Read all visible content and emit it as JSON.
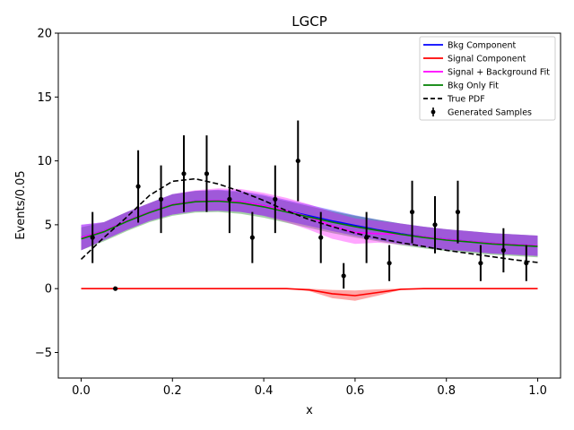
{
  "chart_data": {
    "type": "line",
    "title": "LGCP",
    "xlabel": "x",
    "ylabel": "Events/0.05",
    "xlim": [
      -0.05,
      1.05
    ],
    "ylim": [
      -7,
      20
    ],
    "xticks": [
      0.0,
      0.2,
      0.4,
      0.6,
      0.8,
      1.0
    ],
    "xtick_labels": [
      "0.0",
      "0.2",
      "0.4",
      "0.6",
      "0.8",
      "1.0"
    ],
    "yticks": [
      -5,
      0,
      5,
      10,
      15,
      20
    ],
    "ytick_labels": [
      "−5",
      "0",
      "5",
      "10",
      "15",
      "20"
    ],
    "legend_position": "top-right",
    "legend": [
      {
        "label": "Bkg Component",
        "color": "#0000ff",
        "style": "solid"
      },
      {
        "label": "Signal Component",
        "color": "#ff0000",
        "style": "solid"
      },
      {
        "label": "Signal + Background Fit",
        "color": "#ff00ff",
        "style": "solid"
      },
      {
        "label": "Bkg Only Fit",
        "color": "#008000",
        "style": "solid"
      },
      {
        "label": "True PDF",
        "color": "#000000",
        "style": "dashed"
      },
      {
        "label": "Generated Samples",
        "color": "#000000",
        "style": "errorbar"
      }
    ],
    "x": [
      0.0,
      0.05,
      0.1,
      0.15,
      0.2,
      0.25,
      0.3,
      0.35,
      0.4,
      0.45,
      0.5,
      0.55,
      0.6,
      0.65,
      0.7,
      0.75,
      0.8,
      0.85,
      0.9,
      0.95,
      1.0
    ],
    "series": [
      {
        "name": "Bkg Component",
        "color": "#0000ff",
        "values": [
          4.0,
          4.5,
          5.3,
          6.0,
          6.6,
          6.85,
          6.9,
          6.8,
          6.5,
          6.1,
          5.7,
          5.3,
          4.95,
          4.6,
          4.3,
          4.05,
          3.85,
          3.7,
          3.55,
          3.45,
          3.35
        ],
        "band_lower": [
          3.0,
          3.8,
          4.6,
          5.3,
          5.8,
          6.05,
          6.1,
          6.0,
          5.7,
          5.3,
          4.9,
          4.5,
          4.15,
          3.8,
          3.5,
          3.25,
          3.05,
          2.9,
          2.75,
          2.65,
          2.55
        ],
        "band_upper": [
          5.0,
          5.2,
          6.0,
          6.7,
          7.4,
          7.65,
          7.75,
          7.65,
          7.35,
          6.95,
          6.55,
          6.15,
          5.75,
          5.4,
          5.1,
          4.85,
          4.65,
          4.5,
          4.35,
          4.25,
          4.15
        ]
      },
      {
        "name": "Signal Component",
        "color": "#ff0000",
        "values": [
          0,
          0,
          0,
          0,
          0,
          0,
          0,
          0,
          0,
          0,
          -0.1,
          -0.4,
          -0.55,
          -0.3,
          -0.05,
          0,
          0,
          0,
          0,
          0,
          0
        ],
        "band_lower": [
          0,
          0,
          0,
          0,
          0,
          0,
          0,
          0,
          0,
          0,
          -0.2,
          -0.75,
          -0.95,
          -0.55,
          -0.1,
          0,
          0,
          0,
          0,
          0,
          0
        ],
        "band_upper": [
          0,
          0,
          0,
          0,
          0,
          0,
          0,
          0,
          0,
          0,
          0,
          -0.1,
          -0.15,
          -0.05,
          0,
          0,
          0,
          0,
          0,
          0,
          0
        ]
      },
      {
        "name": "Signal + Background Fit",
        "color": "#ff00ff",
        "values": [
          4.0,
          4.5,
          5.3,
          6.0,
          6.6,
          6.85,
          6.9,
          6.8,
          6.5,
          6.1,
          5.6,
          4.9,
          4.4,
          4.3,
          4.25,
          4.05,
          3.85,
          3.7,
          3.55,
          3.45,
          3.35
        ],
        "band_lower": [
          3.0,
          3.8,
          4.6,
          5.3,
          5.8,
          6.05,
          6.1,
          6.0,
          5.7,
          5.2,
          4.6,
          3.9,
          3.5,
          3.6,
          3.45,
          3.25,
          3.05,
          2.9,
          2.75,
          2.65,
          2.55
        ],
        "band_upper": [
          5.0,
          5.2,
          6.0,
          6.7,
          7.4,
          7.7,
          7.85,
          7.8,
          7.5,
          7.1,
          6.6,
          6.0,
          5.5,
          5.3,
          5.1,
          4.85,
          4.65,
          4.5,
          4.35,
          4.25,
          4.15
        ]
      },
      {
        "name": "Bkg Only Fit",
        "color": "#008000",
        "values": [
          3.9,
          4.45,
          5.25,
          5.95,
          6.55,
          6.8,
          6.85,
          6.7,
          6.4,
          6.0,
          5.6,
          5.2,
          4.85,
          4.55,
          4.25,
          4.0,
          3.8,
          3.65,
          3.5,
          3.4,
          3.3
        ],
        "band_lower": [
          3.0,
          3.7,
          4.5,
          5.2,
          5.7,
          5.95,
          6.0,
          5.85,
          5.55,
          5.15,
          4.75,
          4.35,
          4.0,
          3.7,
          3.4,
          3.15,
          2.95,
          2.8,
          2.65,
          2.55,
          2.45
        ],
        "band_upper": [
          4.8,
          5.2,
          6.0,
          6.7,
          7.4,
          7.65,
          7.7,
          7.55,
          7.25,
          6.85,
          6.45,
          6.05,
          5.7,
          5.4,
          5.1,
          4.85,
          4.65,
          4.5,
          4.35,
          4.25,
          4.15
        ]
      },
      {
        "name": "True PDF",
        "color": "#000000",
        "values": [
          2.3,
          4.0,
          5.6,
          7.3,
          8.4,
          8.6,
          8.2,
          7.6,
          6.9,
          6.1,
          5.4,
          4.85,
          4.35,
          3.95,
          3.6,
          3.3,
          3.0,
          2.75,
          2.5,
          2.25,
          2.05
        ]
      }
    ],
    "samples": {
      "name": "Generated Samples",
      "x": [
        0.025,
        0.075,
        0.125,
        0.175,
        0.225,
        0.275,
        0.325,
        0.375,
        0.425,
        0.475,
        0.525,
        0.575,
        0.625,
        0.675,
        0.725,
        0.775,
        0.825,
        0.875,
        0.925,
        0.975
      ],
      "y": [
        4,
        0,
        8,
        7,
        9,
        9,
        7,
        4,
        7,
        10,
        4,
        1,
        4,
        2,
        6,
        5,
        6,
        2,
        3,
        2
      ],
      "yerr": [
        2.0,
        0,
        2.83,
        2.65,
        3.0,
        3.0,
        2.65,
        2.0,
        2.65,
        3.16,
        2.0,
        1.0,
        2.0,
        1.41,
        2.45,
        2.24,
        2.45,
        1.41,
        1.73,
        1.41
      ]
    }
  }
}
